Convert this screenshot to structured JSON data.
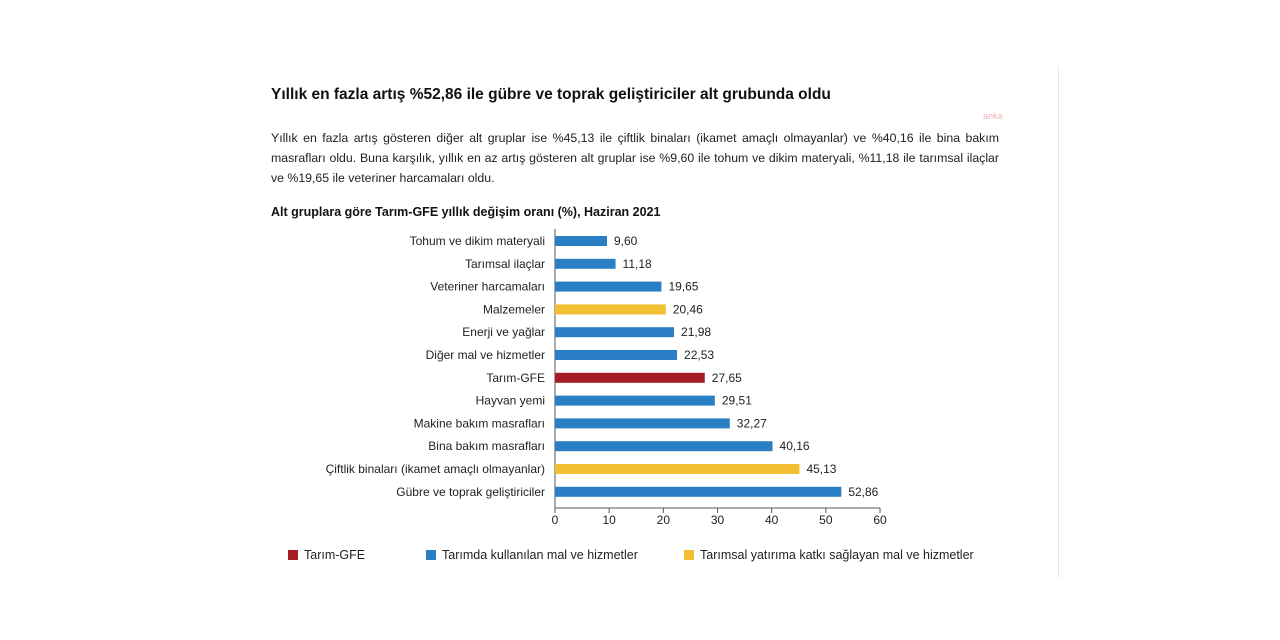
{
  "article": {
    "headline": "Yıllık en fazla artış %52,86 ile gübre ve toprak geliştiriciler alt grubunda oldu",
    "watermark": "anka",
    "paragraph": "Yıllık en fazla artış gösteren diğer alt gruplar ise %45,13 ile çiftlik binaları (ikamet amaçlı olmayanlar) ve %40,16 ile bina bakım masrafları oldu. Buna karşılık, yıllık en az artış gösteren alt gruplar ise %9,60 ile tohum ve dikim materyali, %11,18 ile tarımsal ilaçlar ve %19,65 ile veteriner harcamaları oldu."
  },
  "colors": {
    "tarim_gfe": "#a61c24",
    "mal_hizmet": "#2a7fc4",
    "yatirim": "#f2be32",
    "axis": "#555555",
    "watermark": "#f2b3b8"
  },
  "chart_data": {
    "type": "bar",
    "orientation": "horizontal",
    "title": "Alt gruplara göre Tarım-GFE yıllık değişim oranı (%), Haziran 2021",
    "xlabel": "",
    "ylabel": "",
    "xlim": [
      0,
      60
    ],
    "x_ticks": [
      "0",
      "10",
      "20",
      "30",
      "40",
      "50",
      "60"
    ],
    "grid": false,
    "legend_position": "bottom",
    "categories": [
      "Tohum ve dikim materyali",
      "Tarımsal ilaçlar",
      "Veteriner harcamaları",
      "Malzemeler",
      "Enerji ve yağlar",
      "Diğer mal ve hizmetler",
      "Tarım-GFE",
      "Hayvan yemi",
      "Makine bakım masrafları",
      "Bina bakım masrafları",
      "Çiftlik binaları (ikamet amaçlı olmayanlar)",
      "Gübre ve toprak geliştiriciler"
    ],
    "values": [
      9.6,
      11.18,
      19.65,
      20.46,
      21.98,
      22.53,
      27.65,
      29.51,
      32.27,
      40.16,
      45.13,
      52.86
    ],
    "value_labels": [
      "9,60",
      "11,18",
      "19,65",
      "20,46",
      "21,98",
      "22,53",
      "27,65",
      "29,51",
      "32,27",
      "40,16",
      "45,13",
      "52,86"
    ],
    "groups": [
      "mal_hizmet",
      "mal_hizmet",
      "mal_hizmet",
      "yatirim",
      "mal_hizmet",
      "mal_hizmet",
      "tarim_gfe",
      "mal_hizmet",
      "mal_hizmet",
      "mal_hizmet",
      "yatirim",
      "mal_hizmet"
    ],
    "legend": [
      {
        "key": "tarim_gfe",
        "label": "Tarım-GFE"
      },
      {
        "key": "mal_hizmet",
        "label": "Tarımda kullanılan mal ve hizmetler"
      },
      {
        "key": "yatirim",
        "label": "Tarımsal yatırıma katkı sağlayan mal ve hizmetler"
      }
    ]
  }
}
